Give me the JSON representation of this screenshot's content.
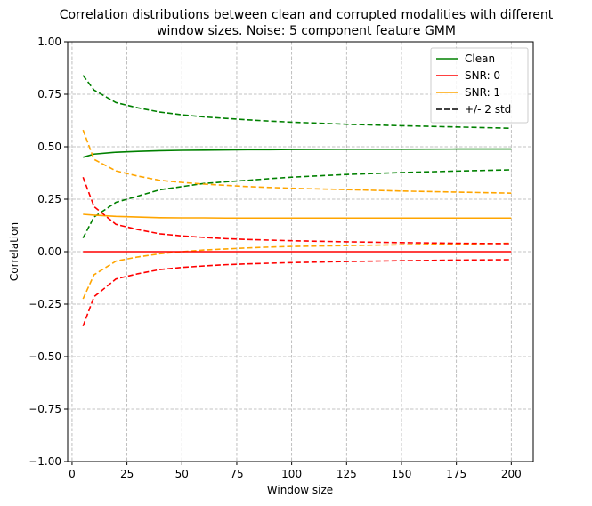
{
  "chart_data": {
    "type": "line",
    "title": "Correlation distributions between clean and corrupted modalities with different window sizes. Noise: 5 component feature GMM",
    "title_lines": [
      "Correlation distributions between clean and corrupted modalities with different",
      "window sizes. Noise: 5 component feature GMM"
    ],
    "xlabel": "Window size",
    "ylabel": "Correlation",
    "xlim": [
      -2,
      210
    ],
    "ylim": [
      -1.0,
      1.0
    ],
    "xticks": [
      0,
      25,
      50,
      75,
      100,
      125,
      150,
      175,
      200
    ],
    "xtick_labels": [
      "0",
      "25",
      "50",
      "75",
      "100",
      "125",
      "150",
      "175",
      "200"
    ],
    "yticks": [
      -1.0,
      -0.75,
      -0.5,
      -0.25,
      0.0,
      0.25,
      0.5,
      0.75,
      1.0
    ],
    "ytick_labels": [
      "−1.00",
      "−0.75",
      "−0.50",
      "−0.25",
      "0.00",
      "0.25",
      "0.50",
      "0.75",
      "1.00"
    ],
    "grid": true,
    "legend_position": "top-right",
    "x": [
      5,
      10,
      20,
      30,
      40,
      50,
      60,
      70,
      80,
      90,
      100,
      125,
      150,
      175,
      200
    ],
    "series": [
      {
        "name": "Clean",
        "color": "#008000",
        "style": "solid",
        "values": [
          0.45,
          0.465,
          0.474,
          0.478,
          0.481,
          0.483,
          0.484,
          0.485,
          0.486,
          0.486,
          0.487,
          0.488,
          0.488,
          0.489,
          0.489
        ]
      },
      {
        "color": "#008000",
        "style": "dashed",
        "values": [
          0.84,
          0.77,
          0.71,
          0.685,
          0.665,
          0.652,
          0.642,
          0.635,
          0.628,
          0.622,
          0.617,
          0.607,
          0.6,
          0.594,
          0.588
        ]
      },
      {
        "color": "#008000",
        "style": "dashed",
        "values": [
          0.065,
          0.165,
          0.235,
          0.265,
          0.295,
          0.31,
          0.325,
          0.333,
          0.34,
          0.348,
          0.355,
          0.368,
          0.377,
          0.384,
          0.39
        ]
      },
      {
        "name": "SNR: 0",
        "color": "#ff0000",
        "style": "solid",
        "values": [
          0.0,
          0.0,
          0.0,
          0.0,
          0.0,
          0.0,
          0.0,
          0.0,
          0.0,
          0.0,
          0.0,
          0.0,
          0.0,
          0.0,
          0.0
        ]
      },
      {
        "color": "#ff0000",
        "style": "dashed",
        "values": [
          0.355,
          0.215,
          0.13,
          0.105,
          0.085,
          0.075,
          0.068,
          0.062,
          0.058,
          0.055,
          0.052,
          0.047,
          0.043,
          0.04,
          0.038
        ]
      },
      {
        "color": "#ff0000",
        "style": "dashed",
        "values": [
          -0.355,
          -0.215,
          -0.13,
          -0.105,
          -0.085,
          -0.075,
          -0.068,
          -0.062,
          -0.058,
          -0.055,
          -0.052,
          -0.047,
          -0.043,
          -0.04,
          -0.038
        ]
      },
      {
        "name": "SNR: 1",
        "color": "#ffa500",
        "style": "solid",
        "values": [
          0.178,
          0.174,
          0.168,
          0.165,
          0.162,
          0.161,
          0.161,
          0.16,
          0.16,
          0.16,
          0.16,
          0.16,
          0.16,
          0.16,
          0.16
        ]
      },
      {
        "color": "#ffa500",
        "style": "dashed",
        "values": [
          0.58,
          0.44,
          0.385,
          0.36,
          0.34,
          0.33,
          0.322,
          0.316,
          0.31,
          0.306,
          0.302,
          0.296,
          0.289,
          0.284,
          0.279
        ]
      },
      {
        "color": "#ffa500",
        "style": "dashed",
        "values": [
          -0.225,
          -0.11,
          -0.045,
          -0.025,
          -0.01,
          0.0,
          0.008,
          0.013,
          0.018,
          0.022,
          0.025,
          0.029,
          0.033,
          0.036,
          0.04
        ]
      }
    ],
    "legend": [
      {
        "label": "Clean",
        "color": "#008000",
        "style": "solid"
      },
      {
        "label": "SNR: 0",
        "color": "#ff0000",
        "style": "solid"
      },
      {
        "label": "SNR: 1",
        "color": "#ffa500",
        "style": "solid"
      },
      {
        "label": "+/- 2 std",
        "color": "#000000",
        "style": "dashed"
      }
    ]
  }
}
